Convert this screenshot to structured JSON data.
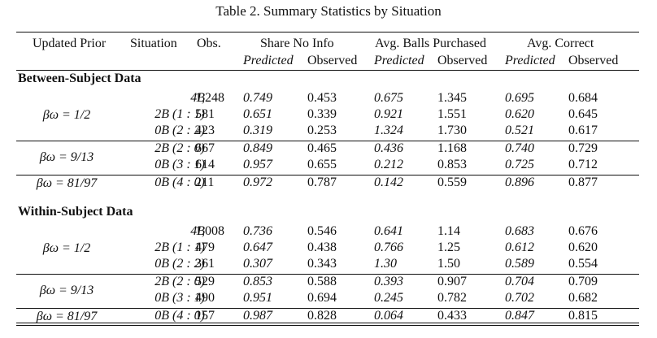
{
  "caption": "Table 2. Summary Statistics by Situation",
  "headers": {
    "updated_prior": "Updated Prior",
    "situation": "Situation",
    "obs": "Obs.",
    "share_no_info": "Share No Info",
    "avg_balls": "Avg. Balls Purchased",
    "avg_correct": "Avg. Correct",
    "predicted": "Predicted",
    "observed": "Observed"
  },
  "sections": [
    {
      "title": "Between-Subject Data",
      "groups": [
        {
          "prior": "βω = 1/2",
          "rows": [
            {
              "situation": "4B",
              "obs": "1,248",
              "sp": "0.749",
              "so": "0.453",
              "bp": "0.675",
              "bo": "1.345",
              "cp": "0.695",
              "co": "0.684"
            },
            {
              "situation": "2B (1 : 1)",
              "obs": "581",
              "sp": "0.651",
              "so": "0.339",
              "bp": "0.921",
              "bo": "1.551",
              "cp": "0.620",
              "co": "0.645"
            },
            {
              "situation": "0B (2 : 2)",
              "obs": "423",
              "sp": "0.319",
              "so": "0.253",
              "bp": "1.324",
              "bo": "1.730",
              "cp": "0.521",
              "co": "0.617"
            }
          ]
        },
        {
          "prior": "βω = 9/13",
          "rows": [
            {
              "situation": "2B (2 : 0)",
              "obs": "667",
              "sp": "0.849",
              "so": "0.465",
              "bp": "0.436",
              "bo": "1.168",
              "cp": "0.740",
              "co": "0.729"
            },
            {
              "situation": "0B (3 : 1)",
              "obs": "614",
              "sp": "0.957",
              "so": "0.655",
              "bp": "0.212",
              "bo": "0.853",
              "cp": "0.725",
              "co": "0.712"
            }
          ]
        },
        {
          "prior": "βω = 81/97",
          "rows": [
            {
              "situation": "0B (4 : 0)",
              "obs": "211",
              "sp": "0.972",
              "so": "0.787",
              "bp": "0.142",
              "bo": "0.559",
              "cp": "0.896",
              "co": "0.877"
            }
          ]
        }
      ]
    },
    {
      "title": "Within-Subject Data",
      "groups": [
        {
          "prior": "βω = 1/2",
          "rows": [
            {
              "situation": "4B",
              "obs": "1,008",
              "sp": "0.736",
              "so": "0.546",
              "bp": "0.641",
              "bo": "1.14",
              "cp": "0.683",
              "co": "0.676"
            },
            {
              "situation": "2B (1 : 1)",
              "obs": "479",
              "sp": "0.647",
              "so": "0.438",
              "bp": "0.766",
              "bo": "1.25",
              "cp": "0.612",
              "co": "0.620"
            },
            {
              "situation": "0B (2 : 2)",
              "obs": "361",
              "sp": "0.307",
              "so": "0.343",
              "bp": "1.30",
              "bo": "1.50",
              "cp": "0.589",
              "co": "0.554"
            }
          ]
        },
        {
          "prior": "βω = 9/13",
          "rows": [
            {
              "situation": "2B (2 : 0)",
              "obs": "529",
              "sp": "0.853",
              "so": "0.588",
              "bp": "0.393",
              "bo": "0.907",
              "cp": "0.704",
              "co": "0.709"
            },
            {
              "situation": "0B (3 : 1)",
              "obs": "490",
              "sp": "0.951",
              "so": "0.694",
              "bp": "0.245",
              "bo": "0.782",
              "cp": "0.702",
              "co": "0.682"
            }
          ]
        },
        {
          "prior": "βω = 81/97",
          "rows": [
            {
              "situation": "0B (4 : 0)",
              "obs": "157",
              "sp": "0.987",
              "so": "0.828",
              "bp": "0.064",
              "bo": "0.433",
              "cp": "0.847",
              "co": "0.815"
            }
          ]
        }
      ]
    }
  ]
}
